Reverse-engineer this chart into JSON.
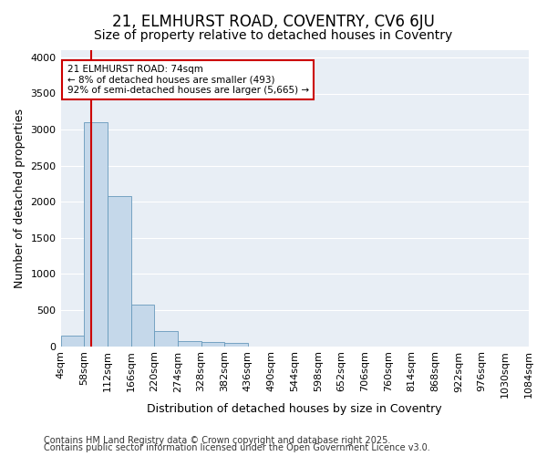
{
  "title1": "21, ELMHURST ROAD, COVENTRY, CV6 6JU",
  "title2": "Size of property relative to detached houses in Coventry",
  "xlabel": "Distribution of detached houses by size in Coventry",
  "ylabel": "Number of detached properties",
  "bin_edges": [
    4,
    58,
    112,
    166,
    220,
    274,
    328,
    382,
    436,
    490,
    544,
    598,
    652,
    706,
    760,
    814,
    868,
    922,
    976,
    1030,
    1084
  ],
  "bar_heights": [
    150,
    3100,
    2080,
    580,
    210,
    75,
    55,
    45,
    0,
    0,
    0,
    0,
    0,
    0,
    0,
    0,
    0,
    0,
    0,
    0
  ],
  "bar_color": "#c5d8ea",
  "bar_edgecolor": "#6699bb",
  "red_line_x": 74,
  "ylim": [
    0,
    4100
  ],
  "yticks": [
    0,
    500,
    1000,
    1500,
    2000,
    2500,
    3000,
    3500,
    4000
  ],
  "annotation_text_line1": "21 ELMHURST ROAD: 74sqm",
  "annotation_text_line2": "← 8% of detached houses are smaller (493)",
  "annotation_text_line3": "92% of semi-detached houses are larger (5,665) →",
  "annotation_box_color": "#cc0000",
  "footer1": "Contains HM Land Registry data © Crown copyright and database right 2025.",
  "footer2": "Contains public sector information licensed under the Open Government Licence v3.0.",
  "bg_color": "#ffffff",
  "plot_bg_color": "#e8eef5",
  "grid_color": "#ffffff",
  "title_fontsize": 12,
  "subtitle_fontsize": 10,
  "axis_label_fontsize": 9,
  "tick_fontsize": 8,
  "footer_fontsize": 7
}
